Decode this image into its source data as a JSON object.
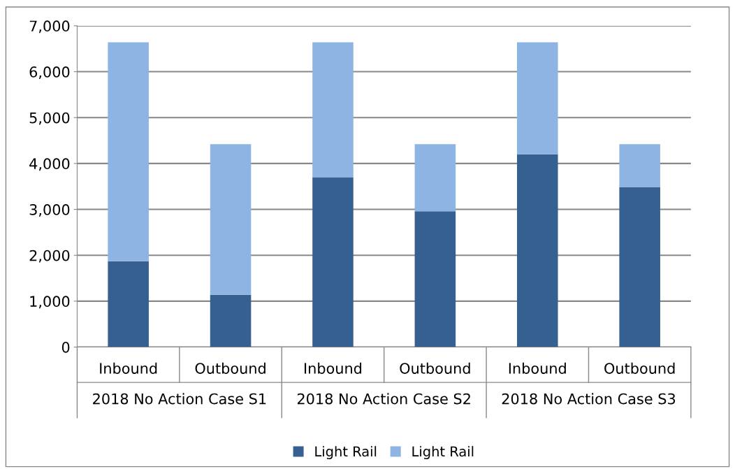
{
  "chart_data": {
    "type": "bar",
    "stacked": true,
    "categories": [
      "Inbound",
      "Outbound",
      "Inbound",
      "Outbound",
      "Inbound",
      "Outbound"
    ],
    "annotations": [
      "2018 No Action Case S1",
      "2018 No Action Case S2",
      "2018 No Action Case S3"
    ],
    "series": [
      {
        "name": "Light Rail",
        "color": "#366092",
        "values": [
          1870,
          1140,
          3700,
          2960,
          4200,
          3480
        ]
      },
      {
        "name": "Light Rail",
        "color": "#8eb4e3",
        "values": [
          4770,
          3280,
          2940,
          1460,
          2440,
          940
        ]
      }
    ],
    "ylim": [
      0,
      7000
    ],
    "yticks": [
      {
        "value": 0,
        "label": "0"
      },
      {
        "value": 1000,
        "label": "1,000"
      },
      {
        "value": 2000,
        "label": "2,000"
      },
      {
        "value": 3000,
        "label": "3,000"
      },
      {
        "value": 4000,
        "label": "4,000"
      },
      {
        "value": 5000,
        "label": "5,000"
      },
      {
        "value": 6000,
        "label": "6,000"
      },
      {
        "value": 7000,
        "label": "7,000"
      }
    ],
    "grid": "y",
    "legend": "bottom"
  }
}
